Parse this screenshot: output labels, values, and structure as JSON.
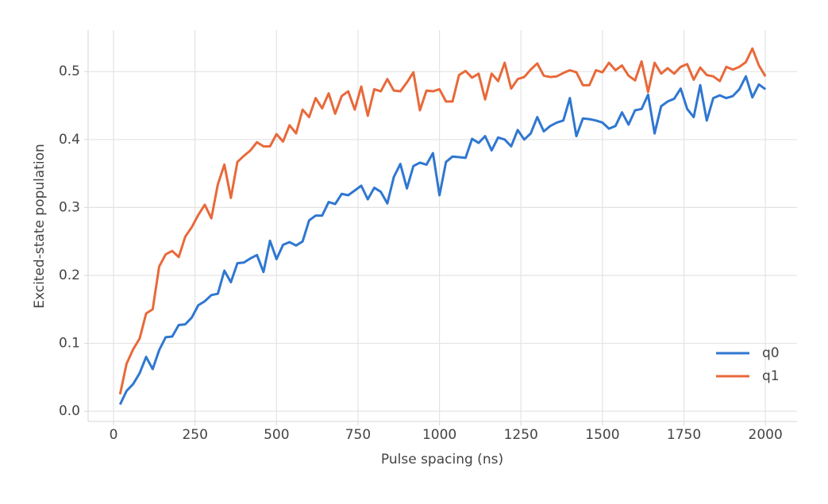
{
  "chart_data": {
    "type": "line",
    "xlabel": "Pulse spacing (ns)",
    "ylabel": "Excited-state population",
    "x": [
      20,
      40,
      60,
      80,
      100,
      120,
      140,
      160,
      180,
      200,
      220,
      240,
      260,
      280,
      300,
      320,
      340,
      360,
      380,
      400,
      420,
      440,
      460,
      480,
      500,
      520,
      540,
      560,
      580,
      600,
      620,
      640,
      660,
      680,
      700,
      720,
      740,
      760,
      780,
      800,
      820,
      840,
      860,
      880,
      900,
      920,
      940,
      960,
      980,
      1000,
      1020,
      1040,
      1060,
      1080,
      1100,
      1120,
      1140,
      1160,
      1180,
      1200,
      1220,
      1240,
      1260,
      1280,
      1300,
      1320,
      1340,
      1360,
      1380,
      1400,
      1420,
      1440,
      1460,
      1480,
      1500,
      1520,
      1540,
      1560,
      1580,
      1600,
      1620,
      1640,
      1660,
      1680,
      1700,
      1720,
      1740,
      1760,
      1780,
      1800,
      1820,
      1840,
      1860,
      1880,
      1900,
      1920,
      1940,
      1960,
      1980,
      2000
    ],
    "series": [
      {
        "name": "q0",
        "color": "#2f77d1",
        "values": [
          0.01,
          0.03,
          0.04,
          0.056,
          0.08,
          0.062,
          0.09,
          0.109,
          0.11,
          0.127,
          0.128,
          0.138,
          0.156,
          0.162,
          0.171,
          0.173,
          0.207,
          0.19,
          0.218,
          0.219,
          0.225,
          0.23,
          0.205,
          0.251,
          0.224,
          0.245,
          0.249,
          0.244,
          0.25,
          0.281,
          0.288,
          0.288,
          0.308,
          0.305,
          0.32,
          0.318,
          0.325,
          0.332,
          0.312,
          0.329,
          0.323,
          0.306,
          0.345,
          0.364,
          0.328,
          0.361,
          0.366,
          0.363,
          0.38,
          0.318,
          0.367,
          0.375,
          0.374,
          0.373,
          0.401,
          0.395,
          0.405,
          0.384,
          0.403,
          0.4,
          0.39,
          0.414,
          0.4,
          0.409,
          0.433,
          0.412,
          0.42,
          0.425,
          0.428,
          0.461,
          0.405,
          0.431,
          0.43,
          0.428,
          0.425,
          0.416,
          0.42,
          0.44,
          0.422,
          0.443,
          0.445,
          0.466,
          0.409,
          0.449,
          0.456,
          0.46,
          0.475,
          0.445,
          0.433,
          0.48,
          0.428,
          0.461,
          0.465,
          0.461,
          0.464,
          0.474,
          0.493,
          0.462,
          0.481,
          0.474
        ]
      },
      {
        "name": "q1",
        "color": "#e8693a",
        "values": [
          0.025,
          0.07,
          0.091,
          0.107,
          0.144,
          0.15,
          0.213,
          0.231,
          0.236,
          0.227,
          0.257,
          0.271,
          0.289,
          0.304,
          0.284,
          0.334,
          0.363,
          0.314,
          0.367,
          0.376,
          0.384,
          0.396,
          0.39,
          0.39,
          0.408,
          0.397,
          0.421,
          0.409,
          0.444,
          0.433,
          0.461,
          0.446,
          0.468,
          0.438,
          0.464,
          0.471,
          0.444,
          0.478,
          0.435,
          0.474,
          0.471,
          0.489,
          0.472,
          0.471,
          0.484,
          0.499,
          0.443,
          0.472,
          0.471,
          0.474,
          0.456,
          0.456,
          0.495,
          0.501,
          0.491,
          0.497,
          0.459,
          0.497,
          0.486,
          0.513,
          0.475,
          0.489,
          0.492,
          0.503,
          0.512,
          0.494,
          0.492,
          0.493,
          0.498,
          0.502,
          0.499,
          0.48,
          0.48,
          0.502,
          0.499,
          0.513,
          0.502,
          0.509,
          0.494,
          0.487,
          0.515,
          0.47,
          0.513,
          0.497,
          0.505,
          0.497,
          0.507,
          0.511,
          0.488,
          0.506,
          0.495,
          0.493,
          0.486,
          0.507,
          0.503,
          0.507,
          0.514,
          0.534,
          0.509,
          0.493
        ]
      }
    ],
    "xlim": [
      -78,
      2097
    ],
    "ylim": [
      -0.015,
      0.561
    ],
    "xticks": [
      0,
      250,
      500,
      750,
      1000,
      1250,
      1500,
      1750,
      2000
    ],
    "yticks": [
      {
        "value": 0,
        "label": "0.0"
      },
      0.1,
      0.2,
      0.3,
      0.4,
      0.5
    ],
    "grid": true,
    "legend": "lower right"
  }
}
